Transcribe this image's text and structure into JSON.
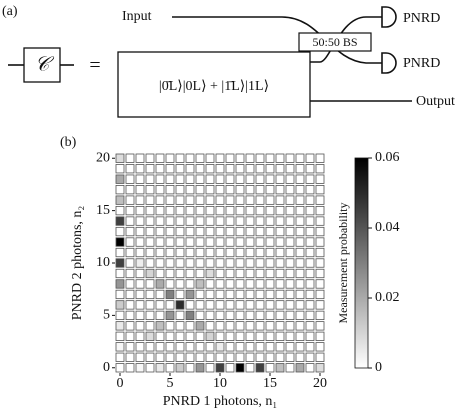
{
  "diagram": {
    "panel_label": "(a)",
    "gate": "𝒞",
    "equals": "=",
    "input": "Input",
    "beam_splitter": "50:50 BS",
    "detector_top": "PNRD",
    "detector_bottom": "PNRD",
    "state": "|0̄L⟩|0L⟩ + |1̄L⟩|1L⟩",
    "output": "Output"
  },
  "chart_data": {
    "type": "heatmap",
    "panel_label": "(b)",
    "x_label": "PNRD 1 photons, n₁",
    "y_label": "PNRD 2 photons, n₂",
    "colorbar_label": "Measurement probability",
    "xlim": [
      -0.5,
      20.5
    ],
    "ylim": [
      -0.5,
      20.5
    ],
    "xticks": [
      0,
      5,
      10,
      15,
      20
    ],
    "yticks": [
      0,
      5,
      10,
      15,
      20
    ],
    "clim": [
      0,
      0.06
    ],
    "cticks": [
      0,
      0.02,
      0.04,
      0.06
    ],
    "colormap": [
      "#ffffff",
      "#000000"
    ],
    "cell_border": "#555555",
    "z": [
      [
        0,
        0,
        0.002,
        0,
        0.005,
        0,
        0.012,
        0,
        0.025,
        0,
        0.045,
        0,
        0.06,
        0,
        0.045,
        0,
        0.015,
        0,
        0.02,
        0,
        0.008
      ],
      [
        0,
        0,
        0,
        0,
        0,
        0,
        0,
        0,
        0,
        0,
        0,
        0,
        0,
        0,
        0,
        0,
        0,
        0,
        0,
        0,
        0
      ],
      [
        0.002,
        0,
        0,
        0,
        0,
        0,
        0,
        0,
        0,
        0,
        0.004,
        0,
        0,
        0,
        0,
        0,
        0,
        0,
        0,
        0,
        0
      ],
      [
        0,
        0,
        0,
        0.008,
        0,
        0,
        0,
        0,
        0,
        0.01,
        0,
        0,
        0,
        0,
        0,
        0,
        0,
        0,
        0,
        0,
        0
      ],
      [
        0.005,
        0,
        0,
        0,
        0.015,
        0,
        0,
        0,
        0.02,
        0,
        0,
        0,
        0,
        0,
        0,
        0,
        0,
        0,
        0,
        0,
        0
      ],
      [
        0,
        0,
        0,
        0,
        0,
        0.025,
        0,
        0.03,
        0,
        0,
        0,
        0,
        0,
        0,
        0,
        0,
        0,
        0,
        0,
        0,
        0
      ],
      [
        0.012,
        0,
        0,
        0,
        0,
        0,
        0.05,
        0,
        0,
        0,
        0,
        0,
        0,
        0,
        0,
        0,
        0,
        0,
        0,
        0,
        0
      ],
      [
        0,
        0,
        0,
        0,
        0,
        0.03,
        0,
        0.025,
        0,
        0,
        0,
        0,
        0,
        0,
        0,
        0,
        0,
        0,
        0,
        0,
        0
      ],
      [
        0.025,
        0,
        0,
        0,
        0.02,
        0,
        0,
        0,
        0.015,
        0,
        0,
        0,
        0,
        0,
        0,
        0,
        0,
        0,
        0,
        0,
        0
      ],
      [
        0,
        0,
        0,
        0.01,
        0,
        0,
        0,
        0,
        0,
        0.008,
        0,
        0,
        0,
        0,
        0,
        0,
        0,
        0,
        0,
        0,
        0
      ],
      [
        0.045,
        0,
        0.004,
        0,
        0,
        0,
        0,
        0,
        0,
        0,
        0,
        0,
        0,
        0,
        0,
        0,
        0,
        0,
        0,
        0,
        0
      ],
      [
        0,
        0,
        0,
        0,
        0,
        0,
        0,
        0,
        0,
        0,
        0,
        0,
        0,
        0,
        0,
        0,
        0,
        0,
        0,
        0,
        0
      ],
      [
        0.06,
        0,
        0,
        0,
        0,
        0,
        0,
        0,
        0,
        0,
        0,
        0,
        0,
        0,
        0,
        0,
        0,
        0,
        0,
        0,
        0
      ],
      [
        0,
        0,
        0,
        0,
        0,
        0,
        0,
        0,
        0,
        0,
        0,
        0,
        0,
        0,
        0,
        0,
        0,
        0,
        0,
        0,
        0
      ],
      [
        0.045,
        0,
        0,
        0,
        0,
        0,
        0,
        0,
        0,
        0,
        0,
        0,
        0,
        0,
        0,
        0,
        0,
        0,
        0,
        0,
        0
      ],
      [
        0,
        0,
        0,
        0,
        0,
        0,
        0,
        0,
        0,
        0,
        0,
        0,
        0,
        0,
        0,
        0,
        0,
        0,
        0,
        0,
        0
      ],
      [
        0.015,
        0,
        0,
        0,
        0,
        0,
        0,
        0,
        0,
        0,
        0,
        0,
        0,
        0,
        0,
        0,
        0,
        0,
        0,
        0,
        0
      ],
      [
        0,
        0,
        0,
        0,
        0,
        0,
        0,
        0,
        0,
        0,
        0,
        0,
        0,
        0,
        0,
        0,
        0,
        0,
        0,
        0,
        0
      ],
      [
        0.02,
        0,
        0,
        0,
        0,
        0,
        0,
        0,
        0,
        0,
        0,
        0,
        0,
        0,
        0,
        0,
        0,
        0,
        0,
        0,
        0
      ],
      [
        0,
        0,
        0,
        0,
        0,
        0,
        0,
        0,
        0,
        0,
        0,
        0,
        0,
        0,
        0,
        0,
        0,
        0,
        0,
        0,
        0
      ],
      [
        0.008,
        0,
        0,
        0,
        0,
        0,
        0,
        0,
        0,
        0,
        0,
        0,
        0,
        0,
        0,
        0,
        0,
        0,
        0,
        0,
        0
      ]
    ]
  }
}
